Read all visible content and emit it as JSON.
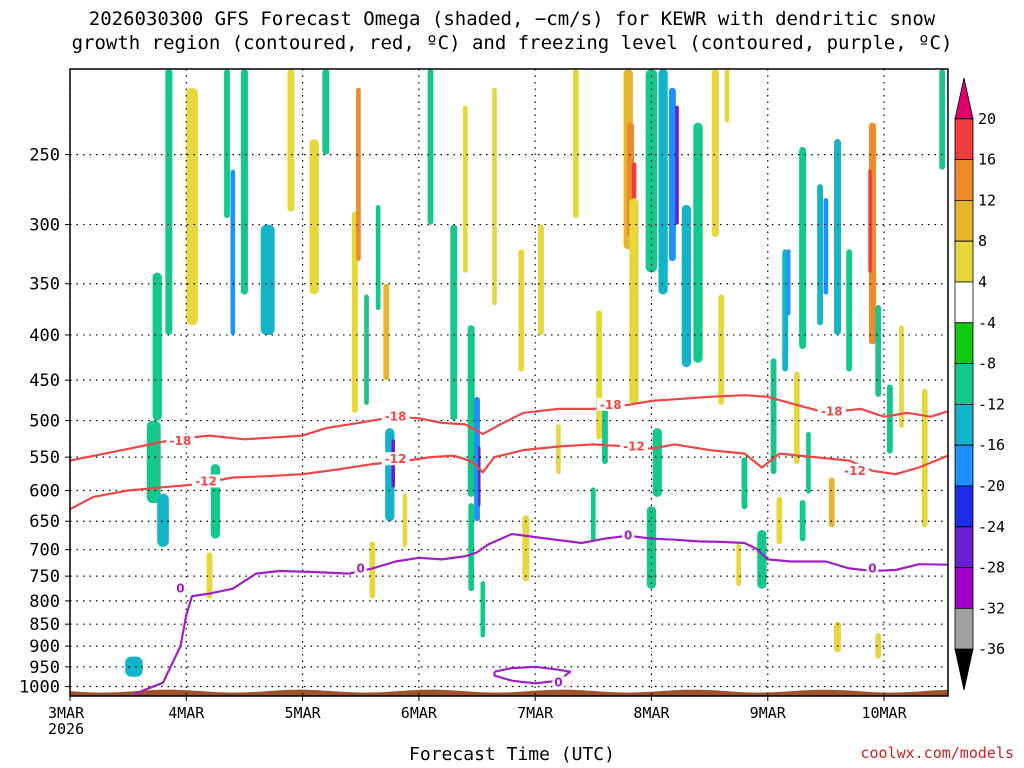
{
  "title_line1": "2026030300 GFS Forecast Omega (shaded, −cm/s) for KEWR with dendritic snow",
  "title_line2": "growth region (contoured, red, ºC) and freezing level (contoured, purple, ºC)",
  "x_axis_title": "Forecast Time (UTC)",
  "credit": "coolwx.com/models",
  "chart_data": {
    "type": "heatmap",
    "x_ticks": [
      "3MAR 2026",
      "4MAR",
      "5MAR",
      "6MAR",
      "7MAR",
      "8MAR",
      "9MAR",
      "10MAR"
    ],
    "x_range_days": [
      0,
      7.55
    ],
    "y_ticks_hpa": [
      250,
      300,
      350,
      400,
      450,
      500,
      550,
      600,
      650,
      700,
      750,
      800,
      850,
      900,
      950,
      1000
    ],
    "y_range_hpa": [
      200,
      1025
    ],
    "y_scale": "log-pressure",
    "grid": true,
    "colorbar": {
      "ticks": [
        20,
        16,
        12,
        8,
        4,
        -4,
        -8,
        -12,
        -16,
        -20,
        -24,
        -28,
        -32,
        -36
      ],
      "colors": [
        "#e0006c",
        "#f03c3c",
        "#ee8a2a",
        "#e6b52e",
        "#e7d63c",
        "#ffffff",
        "#14c814",
        "#14c88c",
        "#14b4c8",
        "#1e90ff",
        "#1e2ee6",
        "#6a1ed2",
        "#a000c8",
        "#a0a0a0",
        "#000000"
      ]
    },
    "contours": [
      {
        "name": "-18",
        "color": "#f04646",
        "points": [
          [
            0,
            555
          ],
          [
            0.3,
            545
          ],
          [
            0.6,
            535
          ],
          [
            0.9,
            525
          ],
          [
            1.2,
            520
          ],
          [
            1.5,
            525
          ],
          [
            1.8,
            522
          ],
          [
            2.0,
            520
          ],
          [
            2.2,
            510
          ],
          [
            2.4,
            505
          ],
          [
            2.6,
            500
          ],
          [
            2.8,
            495
          ],
          [
            3.0,
            497
          ],
          [
            3.2,
            503
          ],
          [
            3.4,
            505
          ],
          [
            3.55,
            518
          ],
          [
            3.7,
            505
          ],
          [
            3.9,
            490
          ],
          [
            4.2,
            485
          ],
          [
            4.5,
            485
          ],
          [
            4.8,
            480
          ],
          [
            5.0,
            475
          ],
          [
            5.2,
            473
          ],
          [
            5.5,
            470
          ],
          [
            5.8,
            468
          ],
          [
            6.0,
            470
          ],
          [
            6.2,
            478
          ],
          [
            6.5,
            490
          ],
          [
            6.8,
            485
          ],
          [
            7.0,
            495
          ],
          [
            7.2,
            490
          ],
          [
            7.4,
            495
          ],
          [
            7.55,
            488
          ]
        ]
      },
      {
        "name": "-12",
        "color": "#f04646",
        "points": [
          [
            0,
            630
          ],
          [
            0.2,
            610
          ],
          [
            0.5,
            600
          ],
          [
            0.8,
            595
          ],
          [
            1.1,
            590
          ],
          [
            1.4,
            580
          ],
          [
            1.7,
            578
          ],
          [
            2.0,
            575
          ],
          [
            2.3,
            568
          ],
          [
            2.6,
            560
          ],
          [
            2.9,
            555
          ],
          [
            3.1,
            550
          ],
          [
            3.3,
            548
          ],
          [
            3.45,
            556
          ],
          [
            3.55,
            572
          ],
          [
            3.65,
            550
          ],
          [
            3.9,
            540
          ],
          [
            4.2,
            535
          ],
          [
            4.5,
            532
          ],
          [
            4.8,
            535
          ],
          [
            5.0,
            538
          ],
          [
            5.2,
            532
          ],
          [
            5.5,
            540
          ],
          [
            5.8,
            545
          ],
          [
            5.95,
            565
          ],
          [
            6.1,
            545
          ],
          [
            6.4,
            550
          ],
          [
            6.7,
            555
          ],
          [
            6.9,
            570
          ],
          [
            7.1,
            575
          ],
          [
            7.3,
            565
          ],
          [
            7.55,
            548
          ]
        ]
      },
      {
        "name": "0",
        "color": "#a020c8",
        "points": [
          [
            0.55,
            1020
          ],
          [
            0.8,
            990
          ],
          [
            0.95,
            900
          ],
          [
            1.0,
            830
          ],
          [
            1.05,
            790
          ],
          [
            1.2,
            785
          ],
          [
            1.4,
            775
          ],
          [
            1.5,
            760
          ],
          [
            1.6,
            745
          ],
          [
            1.8,
            740
          ],
          [
            2.1,
            742
          ],
          [
            2.4,
            745
          ],
          [
            2.6,
            735
          ],
          [
            2.8,
            722
          ],
          [
            3.0,
            715
          ],
          [
            3.2,
            718
          ],
          [
            3.4,
            712
          ],
          [
            3.5,
            705
          ],
          [
            3.6,
            690
          ],
          [
            3.8,
            672
          ],
          [
            4.1,
            680
          ],
          [
            4.4,
            688
          ],
          [
            4.6,
            680
          ],
          [
            4.8,
            675
          ],
          [
            5.0,
            680
          ],
          [
            5.2,
            682
          ],
          [
            5.4,
            685
          ],
          [
            5.6,
            686
          ],
          [
            5.8,
            688
          ],
          [
            5.9,
            698
          ],
          [
            6.0,
            718
          ],
          [
            6.2,
            722
          ],
          [
            6.5,
            722
          ],
          [
            6.7,
            735
          ],
          [
            6.9,
            740
          ],
          [
            7.1,
            738
          ],
          [
            7.3,
            727
          ],
          [
            7.55,
            728
          ]
        ]
      },
      {
        "name": "0",
        "color": "#a020c8",
        "points": [
          [
            3.65,
            962
          ],
          [
            3.8,
            953
          ],
          [
            4.0,
            950
          ],
          [
            4.2,
            957
          ],
          [
            4.3,
            962
          ],
          [
            4.2,
            985
          ],
          [
            4.0,
            992
          ],
          [
            3.8,
            985
          ],
          [
            3.65,
            972
          ],
          [
            3.65,
            962
          ]
        ]
      }
    ],
    "contour_labels": [
      {
        "text": "-18",
        "day": 0.95,
        "hpa": 527
      },
      {
        "text": "-12",
        "day": 1.17,
        "hpa": 586
      },
      {
        "text": "0",
        "day": 0.95,
        "hpa": 775
      },
      {
        "text": "-18",
        "day": 2.8,
        "hpa": 495
      },
      {
        "text": "-12",
        "day": 2.8,
        "hpa": 553
      },
      {
        "text": "0",
        "day": 2.5,
        "hpa": 735
      },
      {
        "text": "-18",
        "day": 4.65,
        "hpa": 480
      },
      {
        "text": "-12",
        "day": 4.85,
        "hpa": 535
      },
      {
        "text": "0",
        "day": 4.8,
        "hpa": 675
      },
      {
        "text": "0",
        "day": 4.2,
        "hpa": 990
      },
      {
        "text": "-18",
        "day": 6.55,
        "hpa": 488
      },
      {
        "text": "-12",
        "day": 6.75,
        "hpa": 570
      },
      {
        "text": "0",
        "day": 6.9,
        "hpa": 735
      }
    ],
    "omega_cells": [
      {
        "day": 0.75,
        "hpa": 420,
        "w": 0.08,
        "h_hpa": 160,
        "value": -8
      },
      {
        "day": 0.85,
        "hpa": 300,
        "w": 0.06,
        "h_hpa": 200,
        "value": -8
      },
      {
        "day": 0.72,
        "hpa": 560,
        "w": 0.12,
        "h_hpa": 120,
        "value": -8
      },
      {
        "day": 0.8,
        "hpa": 650,
        "w": 0.1,
        "h_hpa": 90,
        "value": -12
      },
      {
        "day": 0.55,
        "hpa": 950,
        "w": 0.15,
        "h_hpa": 50,
        "value": -12
      },
      {
        "day": 1.35,
        "hpa": 240,
        "w": 0.05,
        "h_hpa": 110,
        "value": -8
      },
      {
        "day": 1.4,
        "hpa": 330,
        "w": 0.04,
        "h_hpa": 140,
        "value": -16
      },
      {
        "day": 1.5,
        "hpa": 280,
        "w": 0.06,
        "h_hpa": 160,
        "value": -8
      },
      {
        "day": 1.25,
        "hpa": 620,
        "w": 0.08,
        "h_hpa": 120,
        "value": -8
      },
      {
        "day": 1.2,
        "hpa": 750,
        "w": 0.05,
        "h_hpa": 90,
        "value": 4
      },
      {
        "day": 1.7,
        "hpa": 350,
        "w": 0.12,
        "h_hpa": 100,
        "value": -12
      },
      {
        "day": 1.05,
        "hpa": 300,
        "w": 0.1,
        "h_hpa": 180,
        "value": 4
      },
      {
        "day": 1.9,
        "hpa": 240,
        "w": 0.06,
        "h_hpa": 100,
        "value": 4
      },
      {
        "day": 2.1,
        "hpa": 300,
        "w": 0.08,
        "h_hpa": 120,
        "value": 4
      },
      {
        "day": 2.2,
        "hpa": 220,
        "w": 0.06,
        "h_hpa": 60,
        "value": -8
      },
      {
        "day": 2.45,
        "hpa": 390,
        "w": 0.05,
        "h_hpa": 200,
        "value": 4
      },
      {
        "day": 2.48,
        "hpa": 270,
        "w": 0.04,
        "h_hpa": 120,
        "value": 12
      },
      {
        "day": 2.65,
        "hpa": 330,
        "w": 0.04,
        "h_hpa": 90,
        "value": -8
      },
      {
        "day": 2.72,
        "hpa": 400,
        "w": 0.05,
        "h_hpa": 100,
        "value": 8
      },
      {
        "day": 2.75,
        "hpa": 580,
        "w": 0.08,
        "h_hpa": 140,
        "value": -12
      },
      {
        "day": 2.78,
        "hpa": 560,
        "w": 0.03,
        "h_hpa": 70,
        "value": -24
      },
      {
        "day": 2.55,
        "hpa": 420,
        "w": 0.04,
        "h_hpa": 120,
        "value": -8
      },
      {
        "day": 2.6,
        "hpa": 740,
        "w": 0.05,
        "h_hpa": 110,
        "value": 4
      },
      {
        "day": 2.88,
        "hpa": 650,
        "w": 0.04,
        "h_hpa": 90,
        "value": 4
      },
      {
        "day": 3.1,
        "hpa": 240,
        "w": 0.05,
        "h_hpa": 120,
        "value": -8
      },
      {
        "day": 3.3,
        "hpa": 400,
        "w": 0.06,
        "h_hpa": 200,
        "value": -8
      },
      {
        "day": 3.45,
        "hpa": 500,
        "w": 0.06,
        "h_hpa": 220,
        "value": -8
      },
      {
        "day": 3.5,
        "hpa": 560,
        "w": 0.05,
        "h_hpa": 180,
        "value": -16
      },
      {
        "day": 3.52,
        "hpa": 580,
        "w": 0.02,
        "h_hpa": 90,
        "value": -24
      },
      {
        "day": 3.45,
        "hpa": 700,
        "w": 0.05,
        "h_hpa": 160,
        "value": -8
      },
      {
        "day": 3.55,
        "hpa": 820,
        "w": 0.04,
        "h_hpa": 120,
        "value": -8
      },
      {
        "day": 3.4,
        "hpa": 280,
        "w": 0.04,
        "h_hpa": 120,
        "value": 4
      },
      {
        "day": 3.65,
        "hpa": 290,
        "w": 0.04,
        "h_hpa": 160,
        "value": 4
      },
      {
        "day": 3.92,
        "hpa": 700,
        "w": 0.06,
        "h_hpa": 120,
        "value": 4
      },
      {
        "day": 3.88,
        "hpa": 380,
        "w": 0.05,
        "h_hpa": 120,
        "value": 4
      },
      {
        "day": 4.05,
        "hpa": 350,
        "w": 0.05,
        "h_hpa": 100,
        "value": 4
      },
      {
        "day": 4.35,
        "hpa": 240,
        "w": 0.05,
        "h_hpa": 110,
        "value": 4
      },
      {
        "day": 4.5,
        "hpa": 640,
        "w": 0.04,
        "h_hpa": 90,
        "value": -8
      },
      {
        "day": 4.55,
        "hpa": 450,
        "w": 0.05,
        "h_hpa": 150,
        "value": 4
      },
      {
        "day": 4.6,
        "hpa": 520,
        "w": 0.05,
        "h_hpa": 80,
        "value": -8
      },
      {
        "day": 4.2,
        "hpa": 540,
        "w": 0.04,
        "h_hpa": 70,
        "value": 4
      },
      {
        "day": 4.8,
        "hpa": 250,
        "w": 0.08,
        "h_hpa": 140,
        "value": 8
      },
      {
        "day": 4.82,
        "hpa": 270,
        "w": 0.06,
        "h_hpa": 80,
        "value": 12
      },
      {
        "day": 4.85,
        "hpa": 280,
        "w": 0.04,
        "h_hpa": 50,
        "value": 16
      },
      {
        "day": 4.85,
        "hpa": 380,
        "w": 0.08,
        "h_hpa": 200,
        "value": 4
      },
      {
        "day": 5.0,
        "hpa": 250,
        "w": 0.1,
        "h_hpa": 180,
        "value": -8
      },
      {
        "day": 5.1,
        "hpa": 280,
        "w": 0.08,
        "h_hpa": 160,
        "value": -12
      },
      {
        "day": 5.18,
        "hpa": 270,
        "w": 0.06,
        "h_hpa": 120,
        "value": -16
      },
      {
        "day": 5.22,
        "hpa": 260,
        "w": 0.03,
        "h_hpa": 80,
        "value": -24
      },
      {
        "day": 5.3,
        "hpa": 360,
        "w": 0.08,
        "h_hpa": 150,
        "value": -12
      },
      {
        "day": 5.4,
        "hpa": 330,
        "w": 0.08,
        "h_hpa": 200,
        "value": -8
      },
      {
        "day": 5.55,
        "hpa": 250,
        "w": 0.06,
        "h_hpa": 120,
        "value": 4
      },
      {
        "day": 5.65,
        "hpa": 200,
        "w": 0.04,
        "h_hpa": 60,
        "value": 4
      },
      {
        "day": 5.0,
        "hpa": 700,
        "w": 0.08,
        "h_hpa": 150,
        "value": -8
      },
      {
        "day": 5.05,
        "hpa": 560,
        "w": 0.08,
        "h_hpa": 100,
        "value": -8
      },
      {
        "day": 5.6,
        "hpa": 420,
        "w": 0.05,
        "h_hpa": 120,
        "value": 4
      },
      {
        "day": 5.8,
        "hpa": 590,
        "w": 0.05,
        "h_hpa": 80,
        "value": -8
      },
      {
        "day": 5.95,
        "hpa": 720,
        "w": 0.08,
        "h_hpa": 110,
        "value": -8
      },
      {
        "day": 6.1,
        "hpa": 650,
        "w": 0.05,
        "h_hpa": 80,
        "value": 4
      },
      {
        "day": 5.75,
        "hpa": 730,
        "w": 0.04,
        "h_hpa": 80,
        "value": 4
      },
      {
        "day": 6.05,
        "hpa": 500,
        "w": 0.05,
        "h_hpa": 150,
        "value": -8
      },
      {
        "day": 6.15,
        "hpa": 380,
        "w": 0.05,
        "h_hpa": 120,
        "value": -12
      },
      {
        "day": 6.18,
        "hpa": 350,
        "w": 0.03,
        "h_hpa": 60,
        "value": -16
      },
      {
        "day": 6.25,
        "hpa": 500,
        "w": 0.05,
        "h_hpa": 120,
        "value": 4
      },
      {
        "day": 6.35,
        "hpa": 560,
        "w": 0.04,
        "h_hpa": 90,
        "value": -8
      },
      {
        "day": 6.3,
        "hpa": 330,
        "w": 0.06,
        "h_hpa": 170,
        "value": -8
      },
      {
        "day": 6.45,
        "hpa": 330,
        "w": 0.05,
        "h_hpa": 120,
        "value": -12
      },
      {
        "day": 6.5,
        "hpa": 320,
        "w": 0.04,
        "h_hpa": 80,
        "value": -16
      },
      {
        "day": 6.6,
        "hpa": 320,
        "w": 0.06,
        "h_hpa": 160,
        "value": -12
      },
      {
        "day": 6.55,
        "hpa": 620,
        "w": 0.05,
        "h_hpa": 80,
        "value": 8
      },
      {
        "day": 6.7,
        "hpa": 380,
        "w": 0.05,
        "h_hpa": 120,
        "value": -8
      },
      {
        "day": 6.9,
        "hpa": 320,
        "w": 0.06,
        "h_hpa": 180,
        "value": 12
      },
      {
        "day": 6.88,
        "hpa": 300,
        "w": 0.03,
        "h_hpa": 80,
        "value": 16
      },
      {
        "day": 6.95,
        "hpa": 420,
        "w": 0.05,
        "h_hpa": 100,
        "value": -8
      },
      {
        "day": 7.05,
        "hpa": 500,
        "w": 0.05,
        "h_hpa": 90,
        "value": -8
      },
      {
        "day": 7.15,
        "hpa": 450,
        "w": 0.04,
        "h_hpa": 120,
        "value": 4
      },
      {
        "day": 6.6,
        "hpa": 880,
        "w": 0.06,
        "h_hpa": 70,
        "value": 4
      },
      {
        "day": 6.3,
        "hpa": 650,
        "w": 0.05,
        "h_hpa": 70,
        "value": -8
      },
      {
        "day": 6.95,
        "hpa": 900,
        "w": 0.05,
        "h_hpa": 60,
        "value": 4
      },
      {
        "day": 7.35,
        "hpa": 560,
        "w": 0.05,
        "h_hpa": 200,
        "value": 4
      },
      {
        "day": 7.5,
        "hpa": 220,
        "w": 0.05,
        "h_hpa": 80,
        "value": -8
      }
    ]
  }
}
